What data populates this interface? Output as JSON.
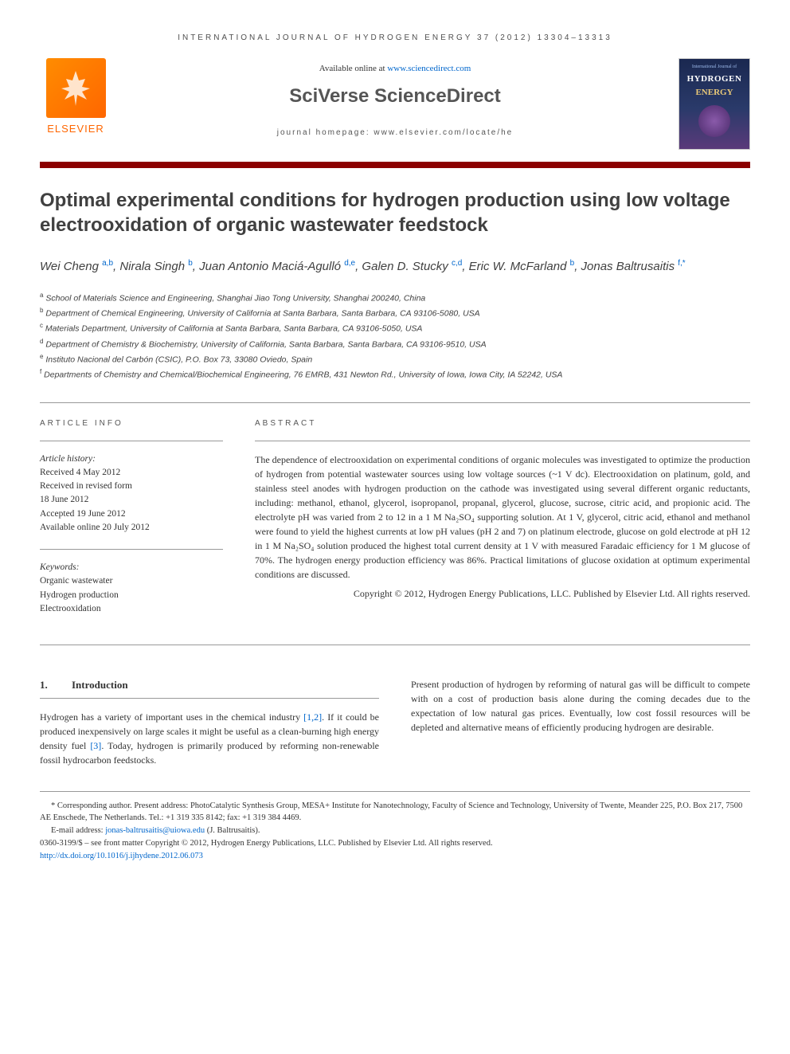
{
  "journal_header": "INTERNATIONAL JOURNAL OF HYDROGEN ENERGY 37 (2012) 13304–13313",
  "banner": {
    "elsevier": "ELSEVIER",
    "available_prefix": "Available online at ",
    "available_link": "www.sciencedirect.com",
    "sciverse": "SciVerse ",
    "sciencedirect": "ScienceDirect",
    "homepage_prefix": "journal homepage: ",
    "homepage_link": "www.elsevier.com/locate/he",
    "cover_line1": "International Journal of",
    "cover_line2": "HYDROGEN",
    "cover_line3": "ENERGY"
  },
  "title": "Optimal experimental conditions for hydrogen production using low voltage electrooxidation of organic wastewater feedstock",
  "authors_html": "Wei Cheng <sup>a,b</sup>, Nirala Singh <sup>b</sup>, Juan Antonio Maciá-Agulló <sup>d,e</sup>, Galen D. Stucky <sup>c,d</sup>, Eric W. McFarland <sup>b</sup>, Jonas Baltrusaitis <sup>f,*</sup>",
  "affiliations": [
    {
      "sup": "a",
      "text": "School of Materials Science and Engineering, Shanghai Jiao Tong University, Shanghai 200240, China"
    },
    {
      "sup": "b",
      "text": "Department of Chemical Engineering, University of California at Santa Barbara, Santa Barbara, CA 93106-5080, USA"
    },
    {
      "sup": "c",
      "text": "Materials Department, University of California at Santa Barbara, Santa Barbara, CA 93106-5050, USA"
    },
    {
      "sup": "d",
      "text": "Department of Chemistry & Biochemistry, University of California, Santa Barbara, Santa Barbara, CA 93106-9510, USA"
    },
    {
      "sup": "e",
      "text": "Instituto Nacional del Carbón (CSIC), P.O. Box 73, 33080 Oviedo, Spain"
    },
    {
      "sup": "f",
      "text": "Departments of Chemistry and Chemical/Biochemical Engineering, 76 EMRB, 431 Newton Rd., University of Iowa, Iowa City, IA 52242, USA"
    }
  ],
  "info": {
    "heading": "ARTICLE INFO",
    "history_label": "Article history:",
    "received": "Received 4 May 2012",
    "revised1": "Received in revised form",
    "revised2": "18 June 2012",
    "accepted": "Accepted 19 June 2012",
    "online": "Available online 20 July 2012",
    "keywords_label": "Keywords:",
    "kw1": "Organic wastewater",
    "kw2": "Hydrogen production",
    "kw3": "Electrooxidation"
  },
  "abstract": {
    "heading": "ABSTRACT",
    "text": "The dependence of electrooxidation on experimental conditions of organic molecules was investigated to optimize the production of hydrogen from potential wastewater sources using low voltage sources (~1 V dc). Electrooxidation on platinum, gold, and stainless steel anodes with hydrogen production on the cathode was investigated using several different organic reductants, including: methanol, ethanol, glycerol, isopropanol, propanal, glycerol, glucose, sucrose, citric acid, and propionic acid. The electrolyte pH was varied from 2 to 12 in a 1 M Na₂SO₄ supporting solution. At 1 V, glycerol, citric acid, ethanol and methanol were found to yield the highest currents at low pH values (pH 2 and 7) on platinum electrode, glucose on gold electrode at pH 12 in 1 M Na₂SO₄ solution produced the highest total current density at 1 V with measured Faradaic efficiency for 1 M glucose of 70%. The hydrogen energy production efficiency was 86%. Practical limitations of glucose oxidation at optimum experimental conditions are discussed.",
    "copyright": "Copyright © 2012, Hydrogen Energy Publications, LLC. Published by Elsevier Ltd. All rights reserved."
  },
  "intro": {
    "heading_num": "1.",
    "heading_text": "Introduction",
    "col1": "Hydrogen has a variety of important uses in the chemical industry [1,2]. If it could be produced inexpensively on large scales it might be useful as a clean-burning high energy density fuel [3]. Today, hydrogen is primarily produced by reforming non-renewable fossil hydrocarbon feedstocks.",
    "col2": "Present production of hydrogen by reforming of natural gas will be difficult to compete with on a cost of production basis alone during the coming decades due to the expectation of low natural gas prices. Eventually, low cost fossil resources will be depleted and alternative means of efficiently producing hydrogen are desirable."
  },
  "footer": {
    "corresponding": "* Corresponding author. Present address: PhotoCatalytic Synthesis Group, MESA+ Institute for Nanotechnology, Faculty of Science and Technology, University of Twente, Meander 225, P.O. Box 217, 7500 AE Enschede, The Netherlands. Tel.: +1 319 335 8142; fax: +1 319 384 4469.",
    "email_label": "E-mail address: ",
    "email": "jonas-baltrusaitis@uiowa.edu",
    "email_suffix": " (J. Baltrusaitis).",
    "issn": "0360-3199/$ – see front matter Copyright © 2012, Hydrogen Energy Publications, LLC. Published by Elsevier Ltd. All rights reserved.",
    "doi": "http://dx.doi.org/10.1016/j.ijhydene.2012.06.073"
  },
  "colors": {
    "red_bar": "#8b0000",
    "link": "#0066cc",
    "elsevier_orange": "#ff6600",
    "text_gray": "#404040"
  }
}
